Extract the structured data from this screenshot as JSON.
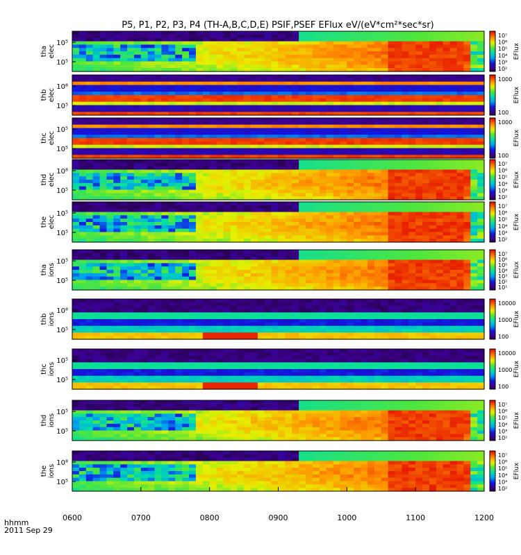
{
  "title": "P5, P1, P2, P3, P4 (TH-A,B,C,D,E) PSIF,PSEF EFlux eV/(eV*cm²*sec*sr)",
  "footer": {
    "time_label": "hhmm",
    "date": "2011 Sep 29"
  },
  "chart_data": {
    "type": "heatmap",
    "x_tick_labels": [
      "0600",
      "0700",
      "0800",
      "0900",
      "1000",
      "1100",
      "1200"
    ],
    "colorbar_label": "EFlux",
    "panels": [
      {
        "probe": "tha",
        "species": "elec",
        "kind": "elec",
        "y_ticks": [
          "10⁵",
          "10⁵"
        ],
        "cbar_ticks": [
          "10⁷",
          "10⁶",
          "10⁵",
          "10⁴",
          "10³",
          "10²"
        ]
      },
      {
        "probe": "thb",
        "species": "elec",
        "kind": "bands",
        "y_ticks": [
          "10⁸",
          "10⁵"
        ],
        "cbar_ticks": [
          "1000",
          "100"
        ]
      },
      {
        "probe": "thc",
        "species": "elec",
        "kind": "bands",
        "y_ticks": [
          "10⁵",
          "10⁵"
        ],
        "cbar_ticks": [
          "1000",
          "100"
        ]
      },
      {
        "probe": "thd",
        "species": "elec",
        "kind": "elec",
        "y_ticks": [
          "10⁸",
          "10⁵"
        ],
        "cbar_ticks": [
          "10⁷",
          "10⁶",
          "10⁵",
          "10⁴",
          "10³",
          "10²"
        ]
      },
      {
        "probe": "the",
        "species": "elec",
        "kind": "elec",
        "y_ticks": [
          "10⁵",
          "10⁵"
        ],
        "cbar_ticks": [
          "10⁷",
          "10⁶",
          "10⁵",
          "10⁴",
          "10³",
          "10²"
        ]
      },
      {
        "probe": "tha",
        "species": "ions",
        "kind": "ion",
        "y_ticks": [
          "10⁵",
          "10⁵"
        ],
        "cbar_ticks": [
          "10⁷",
          "10⁶",
          "10⁵",
          "10⁴",
          "10³",
          "10²",
          "10¹"
        ]
      },
      {
        "probe": "thb",
        "species": "ions",
        "kind": "ionband",
        "y_ticks": [
          "10⁸",
          "10⁵"
        ],
        "cbar_ticks": [
          "10000",
          "1000",
          "100"
        ]
      },
      {
        "probe": "thc",
        "species": "ions",
        "kind": "ionband",
        "y_ticks": [
          "10⁵",
          "10⁵"
        ],
        "cbar_ticks": [
          "10000",
          "1000",
          "100"
        ]
      },
      {
        "probe": "thd",
        "species": "ions",
        "kind": "ion",
        "y_ticks": [
          "10⁵",
          "10⁵"
        ],
        "cbar_ticks": [
          "10⁷",
          "10⁶",
          "10⁵",
          "10⁴",
          "10³",
          "10²"
        ]
      },
      {
        "probe": "the",
        "species": "ions",
        "kind": "ion",
        "y_ticks": [
          "10⁸",
          "10⁵"
        ],
        "cbar_ticks": [
          "10⁷",
          "10⁶",
          "10⁵",
          "10⁴",
          "10³",
          "10²"
        ]
      }
    ]
  }
}
